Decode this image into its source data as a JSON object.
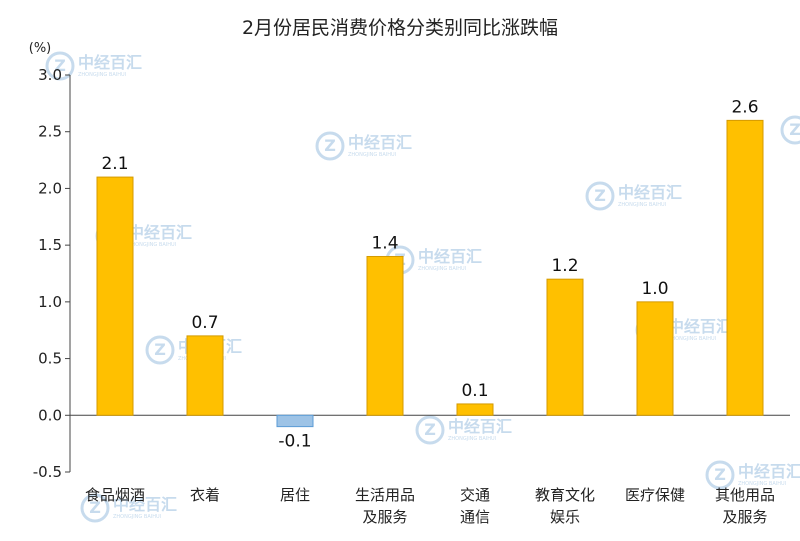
{
  "chart_data": {
    "type": "bar",
    "title": "2月份居民消费价格分类别同比涨跌幅",
    "unit_label": "(%)",
    "categories": [
      [
        "食品烟酒"
      ],
      [
        "衣着"
      ],
      [
        "居住"
      ],
      [
        "生活用品",
        "及服务"
      ],
      [
        "交通",
        "通信"
      ],
      [
        "教育文化",
        "娱乐"
      ],
      [
        "医疗保健"
      ],
      [
        "其他用品",
        "及服务"
      ]
    ],
    "values": [
      2.1,
      0.7,
      -0.1,
      1.4,
      0.1,
      1.2,
      1.0,
      2.6
    ],
    "data_labels": [
      "2.1",
      "0.7",
      "-0.1",
      "1.4",
      "0.1",
      "1.2",
      "1.0",
      "2.6"
    ],
    "yticks": [
      "3.0",
      "2.5",
      "2.0",
      "1.5",
      "1.0",
      "0.5",
      "0.0",
      "-0.5"
    ],
    "ylim": [
      -0.5,
      3.0
    ],
    "grid": false,
    "colors": {
      "positive": "#FFC000",
      "positive_edge": "#D49A00",
      "negative": "#9DC3E6",
      "negative_edge": "#5B9BD5",
      "axis": "#444444"
    }
  },
  "watermark": {
    "brand": "中经百汇",
    "sub": "ZHONGJING BAIHUI",
    "icon": "zj-logo-icon"
  }
}
